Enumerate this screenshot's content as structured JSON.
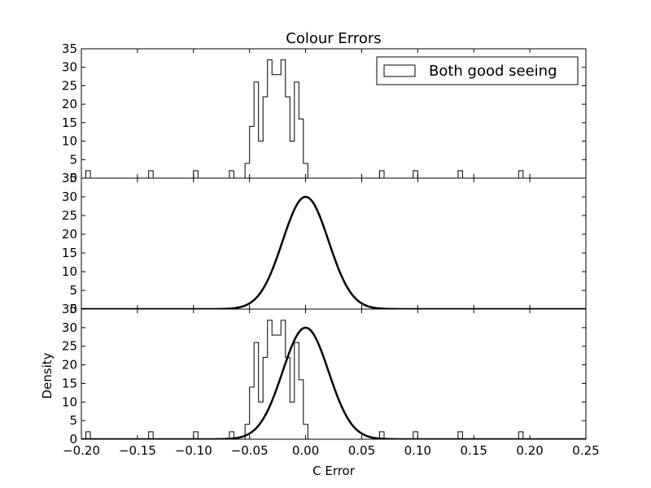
{
  "chart_data": {
    "title": "Colour Errors",
    "xlabel": "C Error",
    "ylabel": "Density",
    "legend": {
      "entries": [
        "Both good seeing"
      ],
      "placement": "top-right"
    },
    "xlim": [
      -0.2,
      0.25
    ],
    "ylim": [
      0,
      35
    ],
    "x_ticks": [
      "−0.20",
      "−0.15",
      "−0.10",
      "−0.05",
      "0.00",
      "0.05",
      "0.10",
      "0.15",
      "0.20",
      "0.25"
    ],
    "y_ticks": [
      "0",
      "5",
      "10",
      "15",
      "20",
      "25",
      "30",
      "35"
    ],
    "histogram": {
      "type": "step-histogram",
      "name": "Both good seeing",
      "bins": [
        {
          "left": -0.196,
          "right": -0.192,
          "value": 2
        },
        {
          "left": -0.14,
          "right": -0.136,
          "value": 2
        },
        {
          "left": -0.1,
          "right": -0.096,
          "value": 2
        },
        {
          "left": -0.068,
          "right": -0.064,
          "value": 2
        },
        {
          "left": -0.054,
          "right": -0.05,
          "value": 4
        },
        {
          "left": -0.05,
          "right": -0.046,
          "value": 14
        },
        {
          "left": -0.046,
          "right": -0.042,
          "value": 26
        },
        {
          "left": -0.042,
          "right": -0.038,
          "value": 10
        },
        {
          "left": -0.038,
          "right": -0.034,
          "value": 22
        },
        {
          "left": -0.034,
          "right": -0.03,
          "value": 32
        },
        {
          "left": -0.03,
          "right": -0.026,
          "value": 28
        },
        {
          "left": -0.026,
          "right": -0.022,
          "value": 28
        },
        {
          "left": -0.022,
          "right": -0.018,
          "value": 32
        },
        {
          "left": -0.018,
          "right": -0.014,
          "value": 22
        },
        {
          "left": -0.014,
          "right": -0.01,
          "value": 10
        },
        {
          "left": -0.01,
          "right": -0.006,
          "value": 26
        },
        {
          "left": -0.006,
          "right": -0.002,
          "value": 16
        },
        {
          "left": -0.002,
          "right": 0.002,
          "value": 4
        },
        {
          "left": 0.066,
          "right": 0.07,
          "value": 2
        },
        {
          "left": 0.096,
          "right": 0.1,
          "value": 2
        },
        {
          "left": 0.136,
          "right": 0.14,
          "value": 2
        },
        {
          "left": 0.19,
          "right": 0.194,
          "value": 2
        }
      ]
    },
    "gaussian": {
      "type": "line",
      "mean": 0.0,
      "sigma": 0.0205,
      "peak": 30
    },
    "panels": [
      {
        "id": "top",
        "type": "histogram",
        "show_title": true,
        "show_legend": true,
        "show_xticks": false,
        "show_ylabel": false
      },
      {
        "id": "middle",
        "type": "line",
        "show_title": false,
        "show_legend": false,
        "show_xticks": false,
        "show_ylabel": false
      },
      {
        "id": "bottom",
        "type": "histogram+line",
        "show_title": false,
        "show_legend": false,
        "show_xticks": true,
        "show_ylabel": true
      }
    ]
  }
}
